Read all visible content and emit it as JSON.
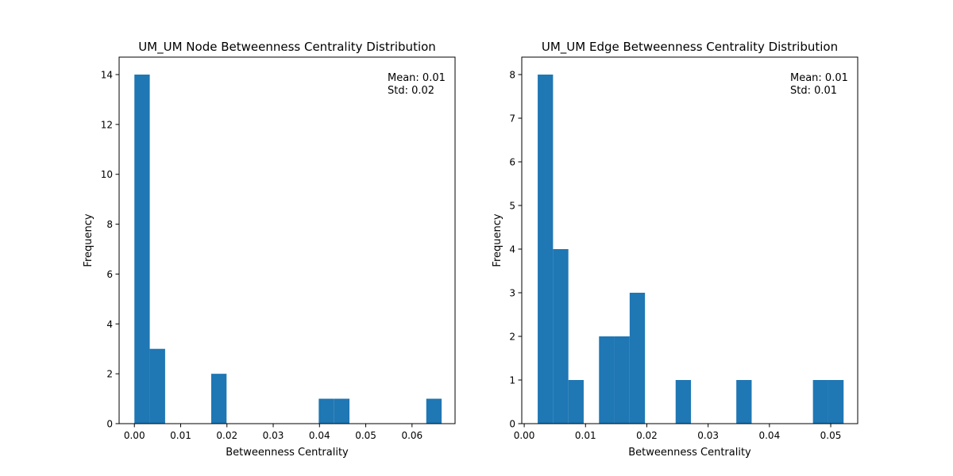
{
  "chart_data": [
    {
      "type": "bar",
      "title": "UM_UM Node Betweenness Centrality Distribution",
      "xlabel": "Betweenness Centrality",
      "ylabel": "Frequency",
      "xlim": [
        -0.0033,
        0.0693
      ],
      "ylim": [
        0,
        14.7
      ],
      "xticks": [
        0.0,
        0.01,
        0.02,
        0.03,
        0.04,
        0.05,
        0.06
      ],
      "xtick_labels": [
        "0.00",
        "0.01",
        "0.02",
        "0.03",
        "0.04",
        "0.05",
        "0.06"
      ],
      "yticks": [
        0,
        2,
        4,
        6,
        8,
        10,
        12,
        14
      ],
      "ytick_labels": [
        "0",
        "2",
        "4",
        "6",
        "8",
        "10",
        "12",
        "14"
      ],
      "bins": [
        {
          "x0": 0.0,
          "x1": 0.00332,
          "count": 14
        },
        {
          "x0": 0.00332,
          "x1": 0.00664,
          "count": 3
        },
        {
          "x0": 0.0166,
          "x1": 0.01992,
          "count": 2
        },
        {
          "x0": 0.03984,
          "x1": 0.04316,
          "count": 1
        },
        {
          "x0": 0.04316,
          "x1": 0.04648,
          "count": 1
        },
        {
          "x0": 0.06308,
          "x1": 0.0664,
          "count": 1
        }
      ],
      "bar_color": "#1f77b4",
      "annotation": {
        "mean": "Mean: 0.01",
        "std": "Std: 0.02"
      }
    },
    {
      "type": "bar",
      "title": "UM_UM Edge Betweenness Centrality Distribution",
      "xlabel": "Betweenness Centrality",
      "ylabel": "Frequency",
      "xlim": [
        -0.0004,
        0.0544
      ],
      "ylim": [
        0,
        8.4
      ],
      "xticks": [
        0.0,
        0.01,
        0.02,
        0.03,
        0.04,
        0.05
      ],
      "xtick_labels": [
        "0.00",
        "0.01",
        "0.02",
        "0.03",
        "0.04",
        "0.05"
      ],
      "yticks": [
        0,
        1,
        2,
        3,
        4,
        5,
        6,
        7,
        8
      ],
      "ytick_labels": [
        "0",
        "1",
        "2",
        "3",
        "4",
        "5",
        "6",
        "7",
        "8"
      ],
      "bins": [
        {
          "x0": 0.0022,
          "x1": 0.0047,
          "count": 8
        },
        {
          "x0": 0.0047,
          "x1": 0.0072,
          "count": 4
        },
        {
          "x0": 0.0072,
          "x1": 0.0097,
          "count": 1
        },
        {
          "x0": 0.0122,
          "x1": 0.0147,
          "count": 2
        },
        {
          "x0": 0.0147,
          "x1": 0.0172,
          "count": 2
        },
        {
          "x0": 0.0172,
          "x1": 0.0197,
          "count": 3
        },
        {
          "x0": 0.0247,
          "x1": 0.0272,
          "count": 1
        },
        {
          "x0": 0.0346,
          "x1": 0.0371,
          "count": 1
        },
        {
          "x0": 0.0471,
          "x1": 0.0496,
          "count": 1
        },
        {
          "x0": 0.0496,
          "x1": 0.0521,
          "count": 1
        }
      ],
      "bar_color": "#1f77b4",
      "annotation": {
        "mean": "Mean: 0.01",
        "std": "Std: 0.01"
      }
    }
  ]
}
